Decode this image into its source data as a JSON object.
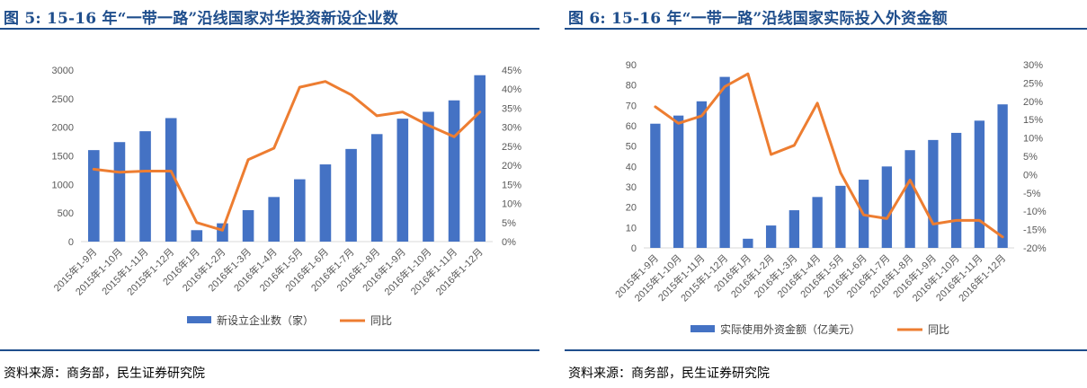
{
  "left": {
    "title": "图 5: 15-16 年“一带一路”沿线国家对华投资新设企业数",
    "source": "资料来源：商务部，民生证券研究院"
  },
  "right": {
    "title": "图 6: 15-16 年“一带一路”沿线国家实际投入外资金额",
    "source": "资料来源：商务部，民生证券研究院"
  },
  "chart_data": [
    {
      "type": "bar",
      "title": "图 5: 15-16 年“一带一路”沿线国家对华投资新设企业数",
      "categories": [
        "2015年1-9月",
        "2015年1-10月",
        "2015年1-11月",
        "2015年1-12月",
        "2016年1月",
        "2016年1-2月",
        "2016年1-3月",
        "2016年1-4月",
        "2016年1-5月",
        "2016年1-6月",
        "2016年1-7月",
        "2016年1-8月",
        "2016年1-9月",
        "2016年1-10月",
        "2016年1-11月",
        "2016年1-12月"
      ],
      "series": [
        {
          "name": "新设立企业数（家）",
          "type": "bar",
          "axis": "left",
          "color": "#4472c4",
          "values": [
            1600,
            1740,
            1930,
            2160,
            200,
            320,
            550,
            780,
            1090,
            1350,
            1620,
            1880,
            2150,
            2270,
            2470,
            2910
          ]
        },
        {
          "name": "同比",
          "type": "line",
          "axis": "right",
          "color": "#ed7d31",
          "values": [
            19,
            18.2,
            18.5,
            18.5,
            5,
            3,
            21.5,
            24.5,
            40.5,
            42,
            38.5,
            33,
            34,
            30.5,
            27.5,
            34
          ]
        }
      ],
      "y_left": {
        "min": 0,
        "max": 3000,
        "step": 500,
        "ticks": [
          "0",
          "500",
          "1000",
          "1500",
          "2000",
          "2500",
          "3000"
        ]
      },
      "y_right": {
        "min": 0,
        "max": 45,
        "step": 5,
        "ticks": [
          "0%",
          "5%",
          "10%",
          "15%",
          "20%",
          "25%",
          "30%",
          "35%",
          "40%",
          "45%"
        ]
      },
      "legend_position": "bottom",
      "grid": false
    },
    {
      "type": "bar",
      "title": "图 6: 15-16 年“一带一路”沿线国家实际投入外资金额",
      "categories": [
        "2015年1-9月",
        "2015年1-10月",
        "2015年1-11月",
        "2015年1-12月",
        "2016年1月",
        "2016年1-2月",
        "2016年1-3月",
        "2016年1-4月",
        "2016年1-5月",
        "2016年1-6月",
        "2016年1-7月",
        "2016年1-8月",
        "2016年1-9月",
        "2016年1-10月",
        "2016年1-11月",
        "2016年1-12月"
      ],
      "series": [
        {
          "name": "实际使用外资金额（亿美元）",
          "type": "bar",
          "axis": "left",
          "color": "#4472c4",
          "values": [
            61,
            65,
            72,
            84,
            4.5,
            11,
            18.5,
            25,
            30.5,
            33.5,
            40,
            48,
            53,
            56.5,
            62.5,
            70.5
          ]
        },
        {
          "name": "同比",
          "type": "line",
          "axis": "right",
          "color": "#ed7d31",
          "values": [
            18.5,
            14,
            16,
            24,
            27.5,
            5.5,
            8,
            19.5,
            0.5,
            -11,
            -12,
            -1.5,
            -13.5,
            -12.5,
            -12.5,
            -17
          ]
        }
      ],
      "y_left": {
        "min": 0,
        "max": 90,
        "step": 10,
        "ticks": [
          "0",
          "10",
          "20",
          "30",
          "40",
          "50",
          "60",
          "70",
          "80",
          "90"
        ]
      },
      "y_right": {
        "min": -20,
        "max": 30,
        "step": 5,
        "ticks": [
          "-20%",
          "-15%",
          "-10%",
          "-5%",
          "0%",
          "5%",
          "10%",
          "15%",
          "20%",
          "25%",
          "30%"
        ]
      },
      "legend_position": "bottom",
      "grid": false
    }
  ]
}
